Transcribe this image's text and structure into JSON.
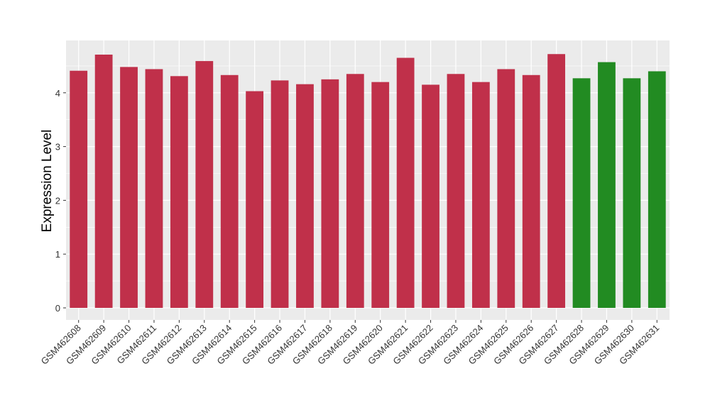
{
  "chart_data": {
    "type": "bar",
    "title": "",
    "xlabel": "",
    "ylabel": "Expression Level",
    "ylim": [
      0,
      5
    ],
    "yticks": [
      0,
      1,
      2,
      3,
      4
    ],
    "grid": true,
    "legend": "none",
    "categories": [
      "GSM462608",
      "GSM462609",
      "GSM462610",
      "GSM462611",
      "GSM462612",
      "GSM462613",
      "GSM462614",
      "GSM462615",
      "GSM462616",
      "GSM462617",
      "GSM462618",
      "GSM462619",
      "GSM462620",
      "GSM462621",
      "GSM462622",
      "GSM462623",
      "GSM462624",
      "GSM462625",
      "GSM462626",
      "GSM462627",
      "GSM462628",
      "GSM462629",
      "GSM462630",
      "GSM462631"
    ],
    "values": [
      4.41,
      4.71,
      4.48,
      4.44,
      4.31,
      4.59,
      4.33,
      4.03,
      4.23,
      4.16,
      4.25,
      4.35,
      4.2,
      4.65,
      4.15,
      4.35,
      4.2,
      4.44,
      4.33,
      4.72,
      4.27,
      4.57,
      4.27,
      4.4
    ],
    "group_colors": [
      "#C0304A",
      "#C0304A",
      "#C0304A",
      "#C0304A",
      "#C0304A",
      "#C0304A",
      "#C0304A",
      "#C0304A",
      "#C0304A",
      "#C0304A",
      "#C0304A",
      "#C0304A",
      "#C0304A",
      "#C0304A",
      "#C0304A",
      "#C0304A",
      "#C0304A",
      "#C0304A",
      "#C0304A",
      "#C0304A",
      "#228B22",
      "#228B22",
      "#228B22",
      "#228B22"
    ],
    "panel_background": "#EBEBEB",
    "grid_color": "#FFFFFF"
  }
}
